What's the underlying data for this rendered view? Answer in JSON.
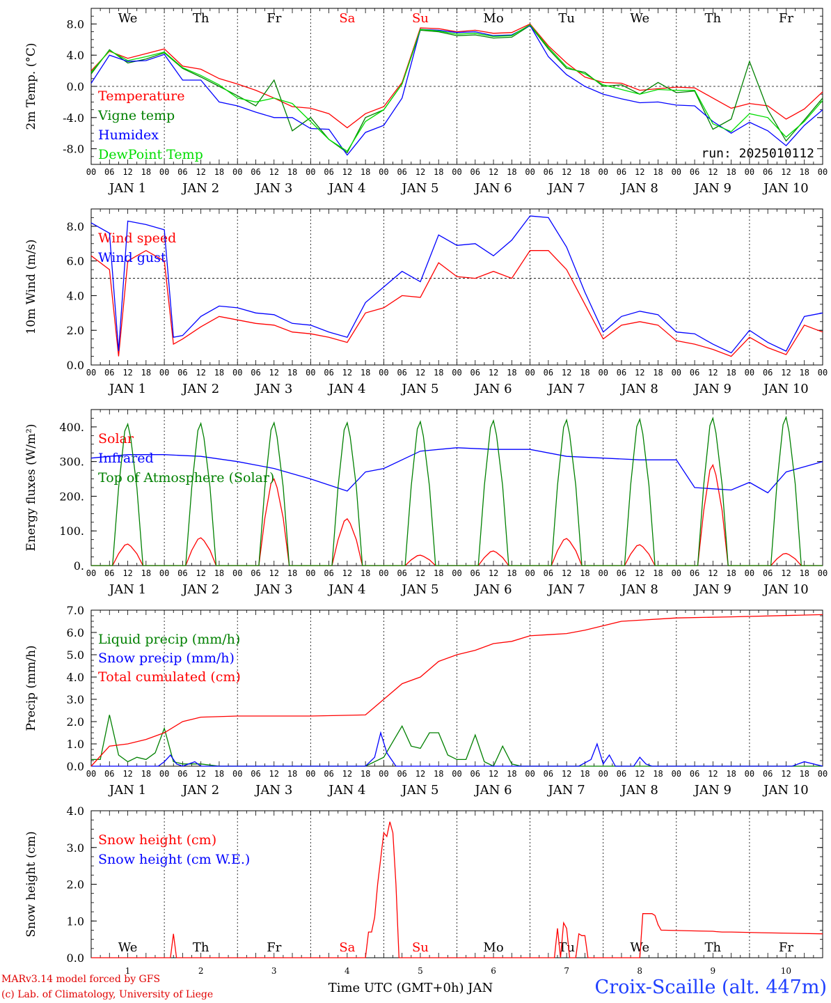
{
  "run_label": "run: 2025010112",
  "x_axis_title": "Time UTC (GMT+0h) JAN",
  "credits": [
    "MARv3.14 model forced by GFS",
    "(c) Lab. of Climatology, University of Liege"
  ],
  "station": "Croix-Scaille (alt. 447m)",
  "days": [
    "We",
    "Th",
    "Fr",
    "Sa",
    "Su",
    "Mo",
    "Tu",
    "We",
    "Th",
    "Fr"
  ],
  "weekend_days": [
    "Sa",
    "Su"
  ],
  "hour_ticks": [
    "00",
    "06",
    "12",
    "18"
  ],
  "date_labels": [
    "JAN  1",
    "JAN  2",
    "JAN  3",
    "JAN  4",
    "JAN  5",
    "JAN  6",
    "JAN  7",
    "JAN  8",
    "JAN  9",
    "JAN 10"
  ],
  "bottom_day_numbers": [
    "1",
    "2",
    "3",
    "4",
    "5",
    "6",
    "7",
    "8",
    "9",
    "10"
  ],
  "colors": {
    "red": "#ff0000",
    "green": "#008000",
    "blue": "#0000ff",
    "lightgreen": "#00dd00",
    "weekend": "#ff0000"
  },
  "chart_data": [
    {
      "type": "line",
      "ylabel": "2m Temp. (°C)",
      "ylim": [
        -10,
        10
      ],
      "yticks": [
        "-8.0",
        "-4.0",
        "0.0",
        "4.0",
        "8.0"
      ],
      "yticks_values": [
        -8,
        -4,
        0,
        4,
        8
      ],
      "ref_line": 0,
      "legend_placement": "left",
      "x_hours": [
        0,
        6,
        12,
        18,
        24,
        30,
        36,
        42,
        48,
        54,
        60,
        66,
        72,
        78,
        84,
        90,
        96,
        102,
        108,
        114,
        120,
        126,
        132,
        138,
        144,
        150,
        156,
        162,
        168,
        174,
        180,
        186,
        192,
        198,
        204,
        210,
        216,
        222,
        228,
        234,
        240
      ],
      "series": [
        {
          "name": "Temperature",
          "color": "red",
          "values": [
            2.0,
            4.5,
            3.6,
            4.2,
            4.8,
            2.6,
            2.2,
            1.0,
            0.3,
            -0.5,
            -1.5,
            -2.6,
            -2.8,
            -3.5,
            -5.3,
            -3.5,
            -2.6,
            0.5,
            7.5,
            7.4,
            7.0,
            7.2,
            6.8,
            6.9,
            8.0,
            5.2,
            3.0,
            1.2,
            0.5,
            0.4,
            -0.5,
            -0.3,
            -0.1,
            -0.2,
            -1.5,
            -2.8,
            -2.2,
            -2.5,
            -4.2,
            -2.9,
            -0.7
          ]
        },
        {
          "name": "Vigne temp",
          "color": "green",
          "values": [
            1.6,
            4.7,
            3.0,
            3.5,
            4.3,
            2.3,
            1.2,
            0.0,
            -1.2,
            -2.5,
            0.8,
            -5.7,
            -4.0,
            -6.8,
            -8.5,
            -4.0,
            -3.0,
            0.3,
            7.2,
            7.0,
            6.5,
            6.6,
            6.2,
            6.3,
            7.8,
            4.8,
            2.3,
            1.8,
            0.0,
            0.2,
            -1.0,
            0.5,
            -0.8,
            -0.6,
            -5.5,
            -4.2,
            3.2,
            -3.0,
            -7.0,
            -4.3,
            -1.5
          ]
        },
        {
          "name": "Humidex",
          "color": "blue",
          "values": [
            0.4,
            4.0,
            3.2,
            3.3,
            4.1,
            0.8,
            0.8,
            -2.0,
            -2.5,
            -3.3,
            -4.0,
            -4.0,
            -5.4,
            -5.5,
            -8.8,
            -5.9,
            -5.0,
            -1.5,
            7.3,
            7.2,
            6.9,
            7.0,
            6.5,
            6.6,
            7.8,
            3.8,
            1.5,
            0.0,
            -1.0,
            -1.6,
            -2.1,
            -2.0,
            -2.4,
            -2.5,
            -4.5,
            -6.0,
            -4.6,
            -5.7,
            -7.6,
            -5.0,
            -3.0
          ]
        },
        {
          "name": "DewPoint Temp",
          "color": "lightgreen",
          "values": [
            1.8,
            4.6,
            3.3,
            3.8,
            4.4,
            2.4,
            1.4,
            0.2,
            -1.5,
            -2.0,
            -1.5,
            -2.2,
            -4.5,
            -6.8,
            -8.3,
            -4.5,
            -3.0,
            0.3,
            7.3,
            7.1,
            6.7,
            6.8,
            6.4,
            6.5,
            7.9,
            5.0,
            2.5,
            1.6,
            0.2,
            -0.4,
            -1.0,
            -0.4,
            -0.5,
            -0.5,
            -4.8,
            -5.8,
            -3.5,
            -4.0,
            -6.5,
            -4.5,
            -1.8
          ]
        }
      ]
    },
    {
      "type": "line",
      "ylabel": "10m Wind (m/s)",
      "ylim": [
        0,
        9
      ],
      "yticks": [
        "0.0",
        "2.0",
        "4.0",
        "6.0",
        "8.0"
      ],
      "yticks_values": [
        0,
        2,
        4,
        6,
        8
      ],
      "ref_line": 5,
      "legend_placement": "left",
      "x_hours": [
        0,
        6,
        9,
        12,
        18,
        24,
        27,
        30,
        36,
        42,
        48,
        54,
        60,
        66,
        72,
        78,
        84,
        90,
        96,
        102,
        108,
        114,
        120,
        126,
        132,
        138,
        144,
        150,
        156,
        162,
        168,
        174,
        180,
        186,
        192,
        198,
        204,
        210,
        216,
        222,
        228,
        234,
        240
      ],
      "series": [
        {
          "name": "Wind speed",
          "color": "red",
          "values": [
            6.3,
            5.5,
            0.5,
            6.0,
            6.6,
            6.0,
            1.2,
            1.5,
            2.2,
            2.8,
            2.6,
            2.4,
            2.3,
            1.9,
            1.8,
            1.6,
            1.3,
            3.0,
            3.3,
            4.0,
            3.9,
            5.9,
            5.1,
            5.0,
            5.4,
            5.0,
            6.6,
            6.6,
            5.5,
            3.5,
            1.5,
            2.3,
            2.5,
            2.3,
            1.4,
            1.2,
            0.9,
            0.5,
            1.6,
            1.0,
            0.6,
            2.3,
            1.9
          ]
        },
        {
          "name": "Wind gust",
          "color": "blue",
          "values": [
            8.2,
            7.6,
            0.8,
            8.3,
            8.1,
            7.8,
            1.6,
            1.7,
            2.8,
            3.4,
            3.3,
            3.0,
            2.9,
            2.4,
            2.3,
            1.9,
            1.6,
            3.6,
            4.5,
            5.4,
            4.8,
            7.5,
            6.9,
            7.0,
            6.3,
            7.2,
            8.6,
            8.5,
            6.8,
            4.2,
            1.9,
            2.8,
            3.1,
            2.9,
            1.9,
            1.8,
            1.2,
            0.7,
            2.0,
            1.3,
            0.8,
            2.8,
            3.0
          ]
        }
      ]
    },
    {
      "type": "line",
      "ylabel": "Energy fluxes (W/m²)",
      "ylim": [
        0,
        450
      ],
      "yticks": [
        "0.",
        "100.",
        "200.",
        "300.",
        "400."
      ],
      "yticks_values": [
        0,
        100,
        200,
        300,
        400
      ],
      "ref_line": null,
      "legend_placement": "left",
      "series": [
        {
          "name": "Solar",
          "color": "red",
          "days_peak": [
            62,
            80,
            250,
            135,
            30,
            42,
            78,
            60,
            290,
            35
          ]
        },
        {
          "name": "Infrared",
          "color": "blue",
          "x_hours": [
            0,
            12,
            24,
            36,
            48,
            60,
            72,
            84,
            90,
            96,
            108,
            120,
            132,
            144,
            156,
            168,
            180,
            192,
            198,
            210,
            216,
            222,
            228,
            234,
            240
          ],
          "values": [
            310,
            320,
            320,
            315,
            300,
            280,
            250,
            215,
            270,
            280,
            330,
            340,
            335,
            335,
            315,
            310,
            305,
            305,
            225,
            218,
            240,
            210,
            270,
            285,
            300
          ]
        },
        {
          "name": "Top of Atmosphere (Solar)",
          "color": "green",
          "days_peak": [
            408,
            410,
            412,
            412,
            415,
            418,
            420,
            422,
            425,
            428
          ]
        }
      ]
    },
    {
      "type": "line",
      "ylabel": "Precip (mm/h)",
      "ylim": [
        0,
        7
      ],
      "yticks": [
        "0.0",
        "1.0",
        "2.0",
        "3.0",
        "4.0",
        "5.0",
        "6.0",
        "7.0"
      ],
      "yticks_values": [
        0,
        1,
        2,
        3,
        4,
        5,
        6,
        7
      ],
      "ref_line": null,
      "legend_placement": "left",
      "series": [
        {
          "name": "Liquid precip (mm/h)",
          "color": "green",
          "x_hours": [
            0,
            3,
            6,
            9,
            12,
            15,
            18,
            21,
            24,
            27,
            30,
            36,
            42,
            48,
            90,
            96,
            99,
            102,
            105,
            108,
            111,
            114,
            117,
            120,
            123,
            126,
            129,
            132,
            135,
            138,
            141,
            144,
            240
          ],
          "values": [
            0.3,
            0.3,
            2.3,
            0.5,
            0.2,
            0.4,
            0.3,
            0.6,
            1.7,
            0.2,
            0.1,
            0.1,
            0.0,
            0.0,
            0.0,
            0.4,
            1.1,
            1.8,
            0.9,
            0.8,
            1.5,
            1.5,
            0.5,
            0.3,
            0.3,
            1.4,
            0.2,
            0.0,
            0.9,
            0.1,
            0.0,
            0.0,
            0.0
          ]
        },
        {
          "name": "Snow precip (mm/h)",
          "color": "blue",
          "x_hours": [
            0,
            22,
            24,
            26,
            28,
            30,
            34,
            36,
            90,
            93,
            95,
            97,
            100,
            160,
            164,
            166,
            168,
            170,
            172,
            178,
            180,
            182,
            184,
            230,
            234,
            240
          ],
          "values": [
            0.0,
            0.0,
            0.2,
            0.5,
            0.1,
            0.0,
            0.2,
            0.0,
            0.0,
            0.4,
            1.5,
            0.6,
            0.0,
            0.0,
            0.3,
            1.0,
            0.1,
            0.5,
            0.0,
            0.0,
            0.4,
            0.1,
            0.0,
            0.0,
            0.2,
            0.0
          ]
        },
        {
          "name": "Total cumulated (cm)",
          "color": "red",
          "x_hours": [
            0,
            6,
            12,
            18,
            24,
            30,
            36,
            48,
            72,
            90,
            96,
            102,
            108,
            114,
            120,
            126,
            132,
            138,
            144,
            150,
            156,
            162,
            168,
            174,
            180,
            186,
            192,
            210,
            240
          ],
          "values": [
            0.0,
            0.9,
            1.0,
            1.2,
            1.5,
            2.0,
            2.2,
            2.25,
            2.25,
            2.3,
            3.0,
            3.7,
            4.0,
            4.7,
            5.0,
            5.2,
            5.5,
            5.6,
            5.85,
            5.9,
            5.95,
            6.1,
            6.3,
            6.5,
            6.55,
            6.6,
            6.65,
            6.7,
            6.8
          ]
        }
      ]
    },
    {
      "type": "line",
      "ylabel": "Snow height (cm)",
      "ylim": [
        0,
        4
      ],
      "yticks": [
        "0.0",
        "1.0",
        "2.0",
        "3.0",
        "4.0"
      ],
      "yticks_values": [
        0,
        1,
        2,
        3,
        4
      ],
      "ref_line": null,
      "legend_placement": "left",
      "series": [
        {
          "name": "Snow height (cm)",
          "color": "red",
          "x_hours": [
            0,
            26,
            27,
            28,
            90,
            91,
            92,
            93,
            94,
            96,
            97,
            98,
            99,
            100,
            101,
            102,
            103,
            104,
            152,
            153,
            154,
            155,
            156,
            157,
            158,
            159,
            160,
            161,
            162,
            163,
            180,
            181,
            182,
            183,
            184,
            185,
            186,
            187,
            198,
            204,
            205,
            207,
            210,
            220,
            240
          ],
          "values": [
            0,
            0,
            0.65,
            0,
            0,
            0.7,
            0.7,
            1.1,
            2.0,
            3.4,
            3.3,
            3.7,
            3.4,
            2.0,
            0,
            0,
            0,
            0,
            0,
            0.8,
            0,
            0.95,
            0.8,
            0,
            0,
            0,
            0.65,
            0.6,
            0.6,
            0,
            0,
            1.2,
            1.2,
            1.2,
            1.2,
            1.15,
            0.9,
            0.75,
            0.73,
            0.72,
            0.71,
            0.7,
            0.7,
            0.68,
            0.65
          ]
        },
        {
          "name": "Snow height (cm W.E.)",
          "color": "blue",
          "x_hours": [],
          "values": []
        }
      ]
    }
  ]
}
